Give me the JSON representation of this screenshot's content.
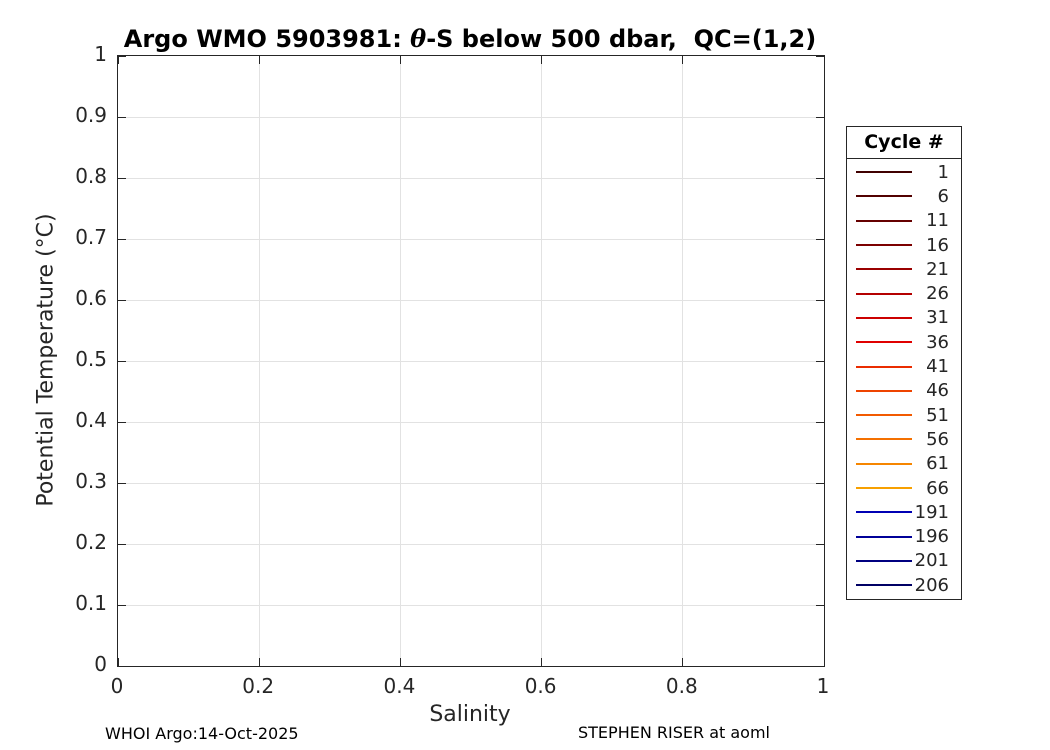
{
  "header": {
    "title_prefix": "Argo WMO 5903981: ",
    "title_theta": "θ",
    "title_suffix": "-S below 500 dbar,  QC=(1,2)"
  },
  "footer": {
    "left": "WHOI Argo:14-Oct-2025",
    "right": "STEPHEN RISER at aoml"
  },
  "chart_data": {
    "type": "line",
    "title": "Argo WMO 5903981: θ-S below 500 dbar,  QC=(1,2)",
    "xlabel": "Salinity",
    "ylabel": "Potential Temperature (°C)",
    "xlim": [
      0,
      1
    ],
    "ylim": [
      0,
      1
    ],
    "xticks": [
      0,
      0.2,
      0.4,
      0.6,
      0.8,
      1
    ],
    "xtick_labels": [
      "0",
      "0.2",
      "0.4",
      "0.6",
      "0.8",
      "1"
    ],
    "yticks": [
      0,
      0.1,
      0.2,
      0.3,
      0.4,
      0.5,
      0.6,
      0.7,
      0.8,
      0.9,
      1
    ],
    "ytick_labels": [
      "0",
      "0.1",
      "0.2",
      "0.3",
      "0.4",
      "0.5",
      "0.6",
      "0.7",
      "0.8",
      "0.9",
      "1"
    ],
    "grid": true,
    "legend_position": "right-outside",
    "legend_title": "Cycle #",
    "series": [
      {
        "name": "1",
        "color": "#400000",
        "values": []
      },
      {
        "name": "6",
        "color": "#520000",
        "values": []
      },
      {
        "name": "11",
        "color": "#660000",
        "values": []
      },
      {
        "name": "16",
        "color": "#7c0000",
        "values": []
      },
      {
        "name": "21",
        "color": "#9a0000",
        "values": []
      },
      {
        "name": "26",
        "color": "#b40000",
        "values": []
      },
      {
        "name": "31",
        "color": "#cc0000",
        "values": []
      },
      {
        "name": "36",
        "color": "#e00000",
        "values": []
      },
      {
        "name": "41",
        "color": "#ea2c00",
        "values": []
      },
      {
        "name": "46",
        "color": "#ee4400",
        "values": []
      },
      {
        "name": "51",
        "color": "#f25a00",
        "values": []
      },
      {
        "name": "56",
        "color": "#f47000",
        "values": []
      },
      {
        "name": "61",
        "color": "#f68600",
        "values": []
      },
      {
        "name": "66",
        "color": "#f7a000",
        "values": []
      },
      {
        "name": "191",
        "color": "#0000b4",
        "values": []
      },
      {
        "name": "196",
        "color": "#000098",
        "values": []
      },
      {
        "name": "201",
        "color": "#000080",
        "values": []
      },
      {
        "name": "206",
        "color": "#000064",
        "values": []
      }
    ]
  },
  "colors": {
    "axis": "#262626",
    "grid": "#e2e2e2",
    "title_text": "#000000"
  }
}
